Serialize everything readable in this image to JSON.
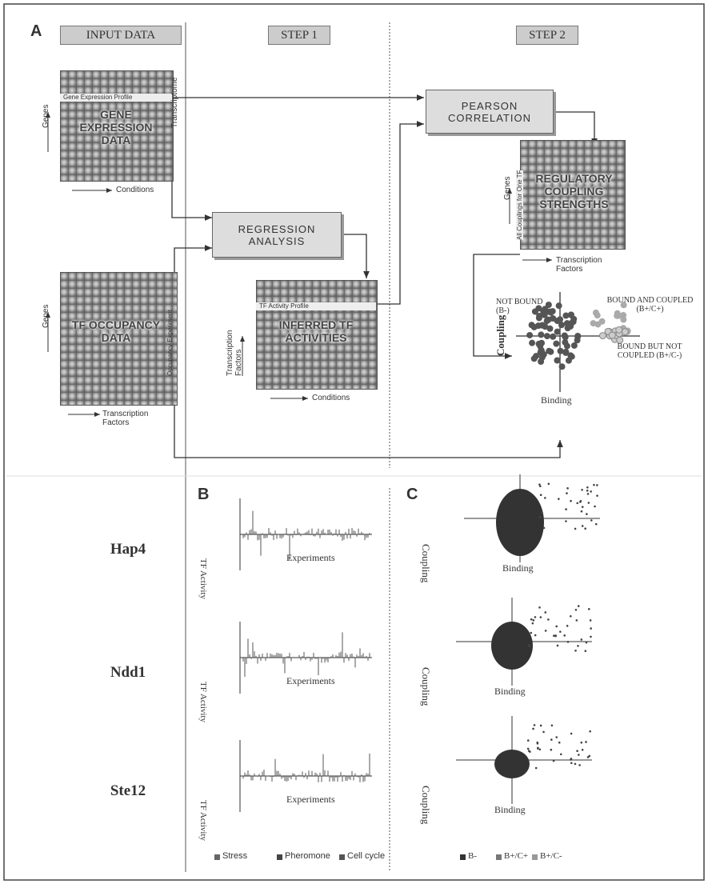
{
  "panel_a": {
    "label": "A",
    "headers": [
      "INPUT DATA",
      "STEP 1",
      "STEP 2"
    ],
    "gene_expression": {
      "title": "GENE EXPRESSION DATA",
      "profile": "Gene Expression Profile",
      "side": "Transcriptome",
      "y_axis": "Genes",
      "x_axis": "Conditions"
    },
    "tf_occupancy": {
      "title": "TF OCCUPANCY DATA",
      "side": "Occupancy Experiment",
      "y_axis": "Genes",
      "x_axis": "Transcription Factors"
    },
    "regression": "REGRESSION ANALYSIS",
    "inferred": {
      "title": "INFERRED TF ACTIVITIES",
      "profile": "TF Activity Profile",
      "y_axis": "Transcription Factors",
      "x_axis": "Conditions"
    },
    "pearson": "PEARSON CORRELATION",
    "coupling": {
      "title": "REGULATORY COUPLING STRENGTHS",
      "side": "All Couplings for One TF",
      "y_axis": "Genes",
      "x_axis": "Transcription Factors"
    },
    "scatter": {
      "not_bound": "NOT BOUND (B-)",
      "bound_coupled": "BOUND AND COUPLED (B+/C+)",
      "bound_not_coupled": "BOUND BUT NOT COUPLED (B+/C-)",
      "x_axis": "Binding",
      "y_axis": "Coupling"
    }
  },
  "panel_b": {
    "label": "B",
    "rows": [
      "Hap4",
      "Ndd1",
      "Ste12"
    ],
    "y_axis": "TF Activity",
    "x_axis": "Experiments",
    "legend": [
      "Stress",
      "Pheromone",
      "Cell cycle"
    ]
  },
  "panel_c": {
    "label": "C",
    "x_axis": "Binding",
    "y_axis": "Coupling",
    "legend": [
      "B-",
      "B+/C+",
      "B+/C-"
    ]
  }
}
